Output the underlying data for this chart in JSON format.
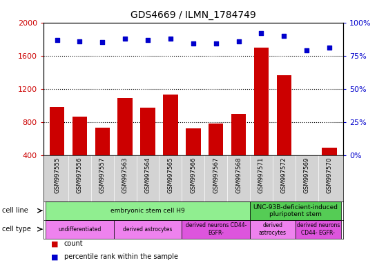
{
  "title": "GDS4669 / ILMN_1784749",
  "samples": [
    "GSM997555",
    "GSM997556",
    "GSM997557",
    "GSM997563",
    "GSM997564",
    "GSM997565",
    "GSM997566",
    "GSM997567",
    "GSM997568",
    "GSM997571",
    "GSM997572",
    "GSM997569",
    "GSM997570"
  ],
  "counts": [
    980,
    860,
    730,
    1090,
    970,
    1130,
    720,
    780,
    900,
    1700,
    1360,
    380,
    490
  ],
  "percentiles": [
    87,
    86,
    85,
    88,
    87,
    88,
    84,
    84,
    86,
    92,
    90,
    79,
    81
  ],
  "bar_color": "#cc0000",
  "dot_color": "#0000cc",
  "ylim_left": [
    400,
    2000
  ],
  "ylim_right": [
    0,
    100
  ],
  "yticks_left": [
    400,
    800,
    1200,
    1600,
    2000
  ],
  "yticks_right": [
    0,
    25,
    50,
    75,
    100
  ],
  "grid_dotted_at": [
    800,
    1200,
    1600
  ],
  "bg_color": "#ffffff",
  "sample_bg_color": "#d3d3d3",
  "cell_line_groups": [
    {
      "label": "embryonic stem cell H9",
      "start": 0,
      "end": 8,
      "color": "#90ee90"
    },
    {
      "label": "UNC-93B-deficient-induced\npluripotent stem",
      "start": 9,
      "end": 12,
      "color": "#55cc55"
    }
  ],
  "cell_type_groups": [
    {
      "label": "undifferentiated",
      "start": 0,
      "end": 2,
      "color": "#ee82ee"
    },
    {
      "label": "derived astrocytes",
      "start": 3,
      "end": 5,
      "color": "#ee82ee"
    },
    {
      "label": "derived neurons CD44-\nEGFR-",
      "start": 6,
      "end": 8,
      "color": "#dd55dd"
    },
    {
      "label": "derived\nastrocytes",
      "start": 9,
      "end": 10,
      "color": "#ee82ee"
    },
    {
      "label": "derived neurons\nCD44- EGFR-",
      "start": 11,
      "end": 12,
      "color": "#dd55dd"
    }
  ]
}
